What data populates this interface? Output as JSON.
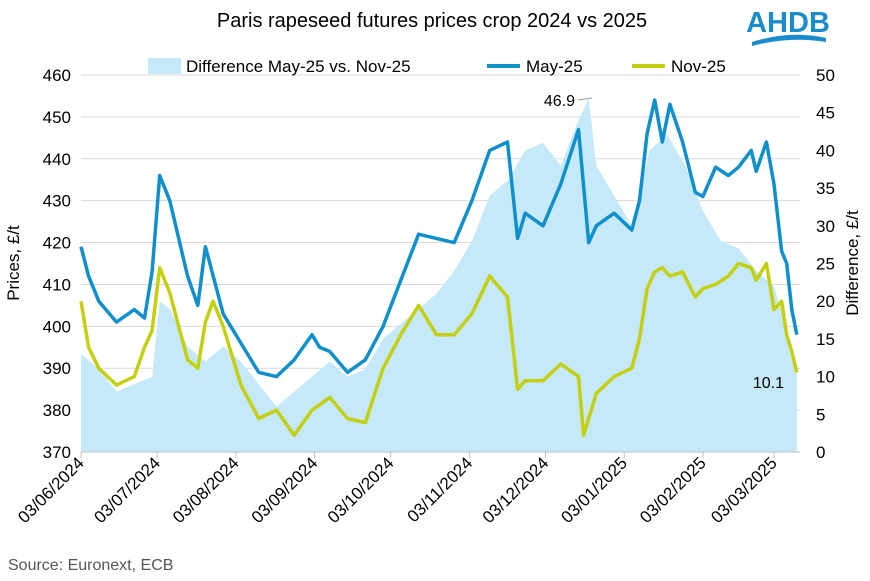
{
  "logo_text": "AHDB",
  "brand_color": "#1a8ccc",
  "source": "Source: Euronext, ECB",
  "chart_data": {
    "type": "line",
    "title": "Paris rapeseed futures prices crop 2024 vs 2025",
    "ylabel": "Prices, £/t",
    "y2label": "Difference, £/t",
    "ylim": [
      370,
      460
    ],
    "y2lim": [
      0,
      50
    ],
    "yticks": [
      "370",
      "380",
      "390",
      "400",
      "410",
      "420",
      "430",
      "440",
      "450",
      "460"
    ],
    "y2ticks": [
      "0",
      "5",
      "10",
      "15",
      "20",
      "25",
      "30",
      "35",
      "40",
      "45",
      "50"
    ],
    "xticks": [
      "03/06/2024",
      "03/07/2024",
      "03/08/2024",
      "03/09/2024",
      "03/10/2024",
      "03/11/2024",
      "03/12/2024",
      "03/01/2025",
      "03/02/2025",
      "03/03/2025"
    ],
    "grid": true,
    "legend_position": "top",
    "annotations": [
      "46.9",
      "10.1"
    ],
    "series": [
      {
        "name": "Difference May-25 vs. Nov-25",
        "type": "area",
        "axis": "right",
        "color": "#c5e9f8",
        "points": [
          [
            "2024-06-03",
            13
          ],
          [
            "2024-06-10",
            11
          ],
          [
            "2024-06-17",
            8
          ],
          [
            "2024-06-24",
            9
          ],
          [
            "2024-07-01",
            10
          ],
          [
            "2024-07-04",
            20
          ],
          [
            "2024-07-08",
            19
          ],
          [
            "2024-07-15",
            14
          ],
          [
            "2024-07-22",
            12
          ],
          [
            "2024-07-29",
            14
          ],
          [
            "2024-08-05",
            12
          ],
          [
            "2024-08-12",
            9
          ],
          [
            "2024-08-19",
            6
          ],
          [
            "2024-08-26",
            8
          ],
          [
            "2024-09-02",
            10
          ],
          [
            "2024-09-09",
            12
          ],
          [
            "2024-09-16",
            10
          ],
          [
            "2024-09-23",
            11
          ],
          [
            "2024-09-30",
            15
          ],
          [
            "2024-10-07",
            17
          ],
          [
            "2024-10-14",
            19
          ],
          [
            "2024-10-21",
            21
          ],
          [
            "2024-10-28",
            24
          ],
          [
            "2024-11-04",
            28
          ],
          [
            "2024-11-11",
            34
          ],
          [
            "2024-11-18",
            36
          ],
          [
            "2024-11-25",
            40
          ],
          [
            "2024-12-02",
            41
          ],
          [
            "2024-12-09",
            38
          ],
          [
            "2024-12-16",
            44
          ],
          [
            "2024-12-20",
            46.9
          ],
          [
            "2024-12-23",
            38
          ],
          [
            "2024-12-30",
            34
          ],
          [
            "2025-01-06",
            30
          ],
          [
            "2025-01-13",
            40
          ],
          [
            "2025-01-20",
            42
          ],
          [
            "2025-01-27",
            38
          ],
          [
            "2025-02-03",
            32
          ],
          [
            "2025-02-10",
            28
          ],
          [
            "2025-02-17",
            27
          ],
          [
            "2025-02-24",
            24
          ],
          [
            "2025-03-03",
            22
          ],
          [
            "2025-03-10",
            14
          ],
          [
            "2025-03-12",
            10.1
          ]
        ]
      },
      {
        "name": "May-25",
        "type": "line",
        "axis": "left",
        "color": "#0f8fcc",
        "points": [
          [
            "2024-06-03",
            419
          ],
          [
            "2024-06-06",
            412
          ],
          [
            "2024-06-10",
            406
          ],
          [
            "2024-06-17",
            401
          ],
          [
            "2024-06-24",
            404
          ],
          [
            "2024-06-28",
            402
          ],
          [
            "2024-07-01",
            413
          ],
          [
            "2024-07-04",
            436
          ],
          [
            "2024-07-08",
            430
          ],
          [
            "2024-07-15",
            412
          ],
          [
            "2024-07-19",
            405
          ],
          [
            "2024-07-22",
            419
          ],
          [
            "2024-07-29",
            403
          ],
          [
            "2024-08-05",
            396
          ],
          [
            "2024-08-12",
            389
          ],
          [
            "2024-08-19",
            388
          ],
          [
            "2024-08-26",
            392
          ],
          [
            "2024-09-02",
            398
          ],
          [
            "2024-09-05",
            395
          ],
          [
            "2024-09-09",
            394
          ],
          [
            "2024-09-16",
            389
          ],
          [
            "2024-09-23",
            392
          ],
          [
            "2024-09-30",
            400
          ],
          [
            "2024-10-07",
            411
          ],
          [
            "2024-10-14",
            422
          ],
          [
            "2024-10-21",
            421
          ],
          [
            "2024-10-28",
            420
          ],
          [
            "2024-11-04",
            430
          ],
          [
            "2024-11-11",
            442
          ],
          [
            "2024-11-18",
            444
          ],
          [
            "2024-11-22",
            421
          ],
          [
            "2024-11-25",
            427
          ],
          [
            "2024-12-02",
            424
          ],
          [
            "2024-12-09",
            434
          ],
          [
            "2024-12-16",
            447
          ],
          [
            "2024-12-20",
            420
          ],
          [
            "2024-12-23",
            424
          ],
          [
            "2024-12-30",
            427
          ],
          [
            "2025-01-06",
            423
          ],
          [
            "2025-01-09",
            430
          ],
          [
            "2025-01-12",
            446
          ],
          [
            "2025-01-15",
            454
          ],
          [
            "2025-01-18",
            444
          ],
          [
            "2025-01-21",
            453
          ],
          [
            "2025-01-26",
            444
          ],
          [
            "2025-01-31",
            432
          ],
          [
            "2025-02-03",
            431
          ],
          [
            "2025-02-08",
            438
          ],
          [
            "2025-02-13",
            436
          ],
          [
            "2025-02-17",
            438
          ],
          [
            "2025-02-22",
            442
          ],
          [
            "2025-02-24",
            437
          ],
          [
            "2025-02-28",
            444
          ],
          [
            "2025-03-03",
            434
          ],
          [
            "2025-03-06",
            418
          ],
          [
            "2025-03-08",
            415
          ],
          [
            "2025-03-10",
            404
          ],
          [
            "2025-03-12",
            398
          ]
        ]
      },
      {
        "name": "Nov-25",
        "type": "line",
        "axis": "left",
        "color": "#c4cf0f",
        "points": [
          [
            "2024-06-03",
            406
          ],
          [
            "2024-06-06",
            395
          ],
          [
            "2024-06-10",
            390
          ],
          [
            "2024-06-17",
            386
          ],
          [
            "2024-06-24",
            388
          ],
          [
            "2024-06-28",
            395
          ],
          [
            "2024-07-01",
            399
          ],
          [
            "2024-07-04",
            414
          ],
          [
            "2024-07-08",
            408
          ],
          [
            "2024-07-15",
            392
          ],
          [
            "2024-07-19",
            390
          ],
          [
            "2024-07-22",
            401
          ],
          [
            "2024-07-25",
            406
          ],
          [
            "2024-07-29",
            400
          ],
          [
            "2024-08-05",
            386
          ],
          [
            "2024-08-12",
            378
          ],
          [
            "2024-08-19",
            380
          ],
          [
            "2024-08-26",
            374
          ],
          [
            "2024-09-02",
            380
          ],
          [
            "2024-09-09",
            383
          ],
          [
            "2024-09-16",
            378
          ],
          [
            "2024-09-23",
            377
          ],
          [
            "2024-09-30",
            390
          ],
          [
            "2024-10-07",
            398
          ],
          [
            "2024-10-14",
            405
          ],
          [
            "2024-10-21",
            398
          ],
          [
            "2024-10-28",
            398
          ],
          [
            "2024-11-04",
            403
          ],
          [
            "2024-11-11",
            412
          ],
          [
            "2024-11-18",
            407
          ],
          [
            "2024-11-22",
            385
          ],
          [
            "2024-11-25",
            387
          ],
          [
            "2024-12-02",
            387
          ],
          [
            "2024-12-09",
            391
          ],
          [
            "2024-12-16",
            388
          ],
          [
            "2024-12-18",
            374
          ],
          [
            "2024-12-23",
            384
          ],
          [
            "2024-12-30",
            388
          ],
          [
            "2025-01-06",
            390
          ],
          [
            "2025-01-09",
            397
          ],
          [
            "2025-01-12",
            409
          ],
          [
            "2025-01-15",
            413
          ],
          [
            "2025-01-18",
            414
          ],
          [
            "2025-01-21",
            412
          ],
          [
            "2025-01-26",
            413
          ],
          [
            "2025-01-31",
            407
          ],
          [
            "2025-02-03",
            409
          ],
          [
            "2025-02-08",
            410
          ],
          [
            "2025-02-13",
            412
          ],
          [
            "2025-02-17",
            415
          ],
          [
            "2025-02-22",
            414
          ],
          [
            "2025-02-24",
            411
          ],
          [
            "2025-02-28",
            415
          ],
          [
            "2025-03-03",
            404
          ],
          [
            "2025-03-06",
            406
          ],
          [
            "2025-03-08",
            398
          ],
          [
            "2025-03-10",
            394
          ],
          [
            "2025-03-12",
            389
          ]
        ]
      }
    ]
  }
}
